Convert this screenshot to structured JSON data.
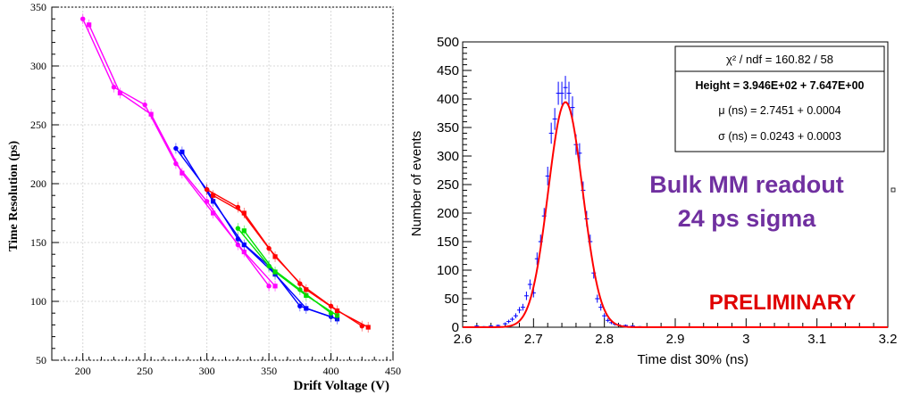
{
  "chart_data": [
    {
      "type": "line",
      "xlabel": "Drift Voltage (V)",
      "ylabel": "Time Resolution (ps)",
      "xlim": [
        175,
        450
      ],
      "ylim": [
        50,
        350
      ],
      "xticks": [
        "200",
        "250",
        "300",
        "350",
        "400",
        "450"
      ],
      "yticks": [
        "50",
        "100",
        "150",
        "200",
        "250",
        "300",
        "350"
      ],
      "series": [
        {
          "name": "magenta-circles",
          "color": "#ff00ff",
          "marker": "circle",
          "x": [
            200,
            225,
            250,
            275,
            300,
            325,
            350
          ],
          "y": [
            340,
            282,
            267,
            217,
            185,
            148,
            113
          ]
        },
        {
          "name": "magenta-squares",
          "color": "#ff00ff",
          "marker": "square",
          "x": [
            205,
            230,
            255,
            280,
            305,
            330,
            355
          ],
          "y": [
            335,
            277,
            259,
            209,
            175,
            142,
            113
          ]
        },
        {
          "name": "blue-circles",
          "color": "#0000ff",
          "marker": "circle",
          "x": [
            275,
            300,
            325,
            350,
            375,
            400
          ],
          "y": [
            230,
            195,
            153,
            130,
            96,
            87
          ]
        },
        {
          "name": "blue-squares",
          "color": "#0000ff",
          "marker": "square",
          "x": [
            280,
            305,
            330,
            355,
            380,
            405
          ],
          "y": [
            227,
            185,
            148,
            123,
            94,
            85
          ]
        },
        {
          "name": "green-circles",
          "color": "#00e000",
          "marker": "circle",
          "x": [
            325,
            350,
            375,
            400
          ],
          "y": [
            162,
            130,
            110,
            90
          ]
        },
        {
          "name": "green-squares",
          "color": "#00e000",
          "marker": "square",
          "x": [
            330,
            355,
            380,
            405
          ],
          "y": [
            160,
            125,
            105,
            88
          ]
        },
        {
          "name": "red-circles",
          "color": "#ff0000",
          "marker": "circle",
          "x": [
            300,
            325,
            350,
            375,
            400,
            425
          ],
          "y": [
            195,
            180,
            145,
            115,
            96,
            79
          ]
        },
        {
          "name": "red-squares",
          "color": "#ff0000",
          "marker": "square",
          "x": [
            305,
            330,
            355,
            380,
            405,
            430
          ],
          "y": [
            190,
            175,
            138,
            110,
            92,
            78
          ]
        }
      ]
    },
    {
      "type": "histogram",
      "xlabel": "Time  dist 30% (ns)",
      "ylabel": "Number of events",
      "xlim": [
        2.6,
        3.2
      ],
      "ylim": [
        0,
        500
      ],
      "xticks": [
        "2.6",
        "2.7",
        "2.8",
        "2.9",
        "3",
        "3.1",
        "3.2"
      ],
      "yticks": [
        "0",
        "50",
        "100",
        "150",
        "200",
        "250",
        "300",
        "350",
        "400",
        "450",
        "500"
      ],
      "fit": {
        "type": "gaussian",
        "height": 394.6,
        "mean": 2.7451,
        "sigma": 0.0243,
        "color": "#ff0000"
      },
      "bins": {
        "x": [
          2.62,
          2.63,
          2.64,
          2.65,
          2.66,
          2.665,
          2.67,
          2.675,
          2.68,
          2.685,
          2.69,
          2.695,
          2.7,
          2.705,
          2.71,
          2.715,
          2.72,
          2.725,
          2.73,
          2.735,
          2.74,
          2.745,
          2.75,
          2.755,
          2.76,
          2.765,
          2.77,
          2.775,
          2.78,
          2.785,
          2.79,
          2.795,
          2.8,
          2.805,
          2.81,
          2.815,
          2.82,
          2.83,
          2.84,
          2.85
        ],
        "y": [
          2,
          1,
          2,
          3,
          6,
          10,
          14,
          20,
          30,
          35,
          55,
          75,
          60,
          120,
          150,
          195,
          265,
          340,
          365,
          410,
          410,
          420,
          410,
          385,
          320,
          305,
          240,
          190,
          150,
          95,
          50,
          35,
          20,
          12,
          8,
          5,
          4,
          3,
          2,
          1
        ]
      },
      "stats_box": {
        "chi2": "χ² / ndf = 160.82 / 58",
        "height": "Height = 3.946E+02 + 7.647E+00",
        "mu": "μ (ns) = 2.7451 + 0.0004",
        "sigma": "σ (ns) = 0.0243 + 0.0003"
      },
      "annotations": {
        "readout_line1": "Bulk MM readout",
        "readout_line2": "24 ps sigma",
        "preliminary": "PRELIMINARY"
      }
    }
  ],
  "colors": {
    "annotation_purple": "#7030a0",
    "preliminary_red": "#e00000",
    "fit_red": "#ff0000",
    "hist_blue": "#0000ff"
  }
}
